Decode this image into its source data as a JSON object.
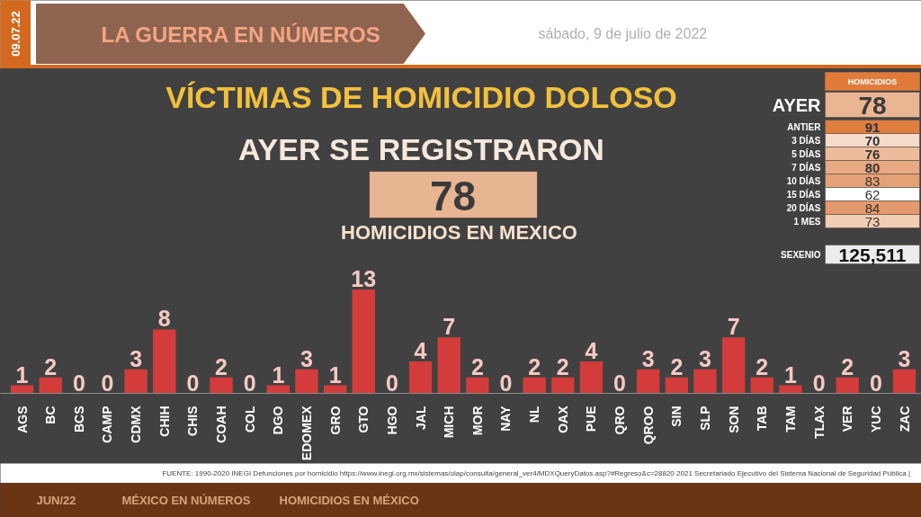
{
  "chart_data": [
    {
      "type": "bar",
      "title": "VÍCTIMAS DE HOMICIDIO DOLOSO",
      "categories": [
        "AGS",
        "BC",
        "BCS",
        "CAMP",
        "CDMX",
        "CHIH",
        "CHIS",
        "COAH",
        "COL",
        "DGO",
        "EDOMEX",
        "GRO",
        "GTO",
        "HGO",
        "JAL",
        "MICH",
        "MOR",
        "NAY",
        "NL",
        "OAX",
        "PUE",
        "QRO",
        "QROO",
        "SIN",
        "SLP",
        "SON",
        "TAB",
        "TAM",
        "TLAX",
        "VER",
        "YUC",
        "ZAC"
      ],
      "values": [
        1,
        2,
        0,
        0,
        3,
        8,
        0,
        2,
        0,
        1,
        3,
        1,
        13,
        0,
        4,
        7,
        2,
        0,
        2,
        2,
        4,
        0,
        3,
        2,
        3,
        7,
        2,
        1,
        0,
        2,
        0,
        3
      ],
      "color": "#d43c3c",
      "data_labels": true,
      "tick_labels": "x",
      "annotations": [
        "09.07.22",
        "LA GUERRA EN NÚMEROS",
        "sábado, 9 de julio de 2022",
        "AYER SE REGISTRARON",
        "78",
        "HOMICIDIOS EN MEXICO",
        "FUENTE: 1990-2020 INEGI Defunciones por homicidio https://www.inegi.org.mx/sistemas/olap/consulta/general_ver4/MDXQueryDatos.asp?#Regreso&c=28820   2021 Secretariado Ejecutivo del Sistema Nacional de Seguridad Pública |",
        "JUN/22",
        "MÉXICO EN NÚMEROS",
        "HOMICIDIOS EN MÉXICO"
      ]
    },
    {
      "type": "other",
      "title": "HOMICIDIOS",
      "annotations": [
        "AYER",
        "78",
        "ANTIER",
        "91",
        "3 DÍAS",
        "70",
        "5 DÍAS",
        "76",
        "7 DÍAS",
        "80",
        "10 DÍAS",
        "83",
        "15 DÍAS",
        "62",
        "20 DÍAS",
        "84",
        "1 MES",
        "73",
        "SEXENIO",
        "125,511"
      ],
      "colors": [
        "#eab592",
        "#e07e40",
        "#f5dccb",
        "#eebc9c",
        "#e9a983",
        "#e6a076",
        "#ffffff",
        "#e49a6e",
        "#f2cdb3",
        "#ececec"
      ]
    }
  ]
}
